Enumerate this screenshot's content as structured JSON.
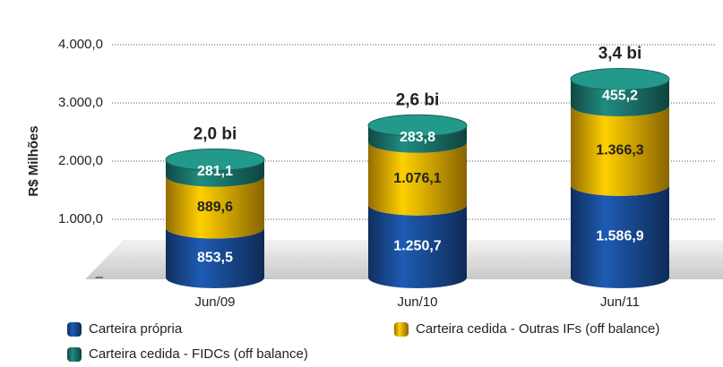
{
  "chart_data": {
    "type": "stacked_cylinder",
    "y_label": "R$ Milhões",
    "categories": [
      "Jun/09",
      "Jun/10",
      "Jun/11"
    ],
    "series": [
      {
        "name": "Carteira própria",
        "color": "#1a4f9c",
        "values": [
          853.5,
          1250.7,
          1586.9
        ],
        "value_labels": [
          "853,5",
          "1.250,7",
          "1.586,9"
        ]
      },
      {
        "name": "Carteira cedida - Outras IFs (off balance)",
        "color": "#f7b500",
        "values": [
          889.6,
          1076.1,
          1366.3
        ],
        "value_labels": [
          "889,6",
          "1.076,1",
          "1.366,3"
        ]
      },
      {
        "name": "Carteira cedida - FIDCs (off balance)",
        "color": "#1c7a70",
        "values": [
          281.1,
          283.8,
          455.2
        ],
        "value_labels": [
          "281,1",
          "283,8",
          "455,2"
        ]
      }
    ],
    "annotations": [
      "2,0 bi",
      "2,6 bi",
      "3,4 bi"
    ],
    "ylim": [
      0,
      4000
    ],
    "yticks": [
      {
        "value": 0,
        "label": "–"
      },
      {
        "value": 1000,
        "label": "1.000,0"
      },
      {
        "value": 2000,
        "label": "2.000,0"
      },
      {
        "value": 3000,
        "label": "3.000,0"
      },
      {
        "value": 4000,
        "label": "4.000,0"
      }
    ],
    "grid": true
  }
}
